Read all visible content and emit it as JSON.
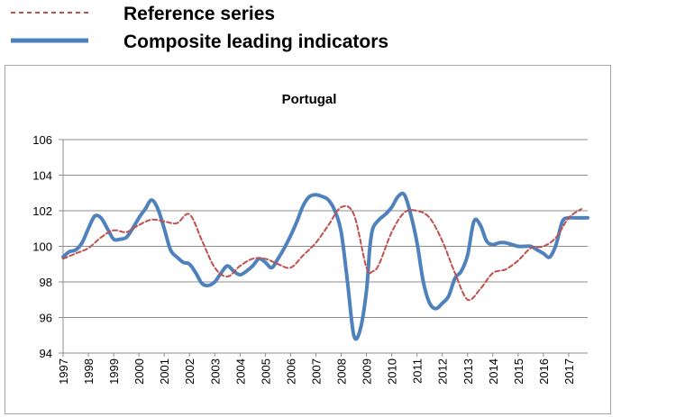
{
  "chart_data": {
    "type": "line",
    "title": "Portugal",
    "xlabel": "",
    "ylabel": "",
    "ylim": [
      94,
      106
    ],
    "yticks": [
      94,
      96,
      98,
      100,
      102,
      104,
      106
    ],
    "xlim": [
      1997,
      2017.75
    ],
    "xticks": [
      "1997",
      "1998",
      "1999",
      "2000",
      "2001",
      "2002",
      "2003",
      "2004",
      "2005",
      "2006",
      "2007",
      "2008",
      "2009",
      "2010",
      "2011",
      "2012",
      "2013",
      "2014",
      "2015",
      "2016",
      "2017"
    ],
    "grid": "horizontal",
    "legend_position": "top-left, outside plot",
    "series": [
      {
        "name": "Reference series",
        "style": "dashed",
        "color": "#c0504d",
        "x": [
          1997,
          1997.5,
          1998,
          1998.5,
          1999,
          1999.5,
          2000,
          2000.5,
          2001,
          2001.5,
          2002,
          2002.5,
          2003,
          2003.5,
          2004,
          2004.5,
          2005,
          2005.5,
          2006,
          2006.5,
          2007,
          2007.5,
          2008,
          2008.5,
          2009,
          2009.25,
          2009.5,
          2010,
          2010.5,
          2011,
          2011.5,
          2012,
          2012.5,
          2013,
          2013.5,
          2014,
          2014.5,
          2015,
          2015.5,
          2016,
          2016.5,
          2017,
          2017.5
        ],
        "values": [
          99.3,
          99.6,
          99.9,
          100.5,
          100.9,
          100.8,
          101.2,
          101.5,
          101.4,
          101.3,
          101.8,
          100.3,
          98.8,
          98.3,
          98.9,
          99.3,
          99.3,
          99.0,
          98.8,
          99.5,
          100.2,
          101.2,
          102.2,
          101.8,
          98.8,
          98.6,
          99.0,
          100.8,
          101.9,
          102.0,
          101.6,
          100.3,
          98.5,
          97.0,
          97.6,
          98.5,
          98.7,
          99.2,
          99.9,
          100.0,
          100.5,
          101.6,
          102.1
        ]
      },
      {
        "name": "Composite leading indicators",
        "style": "solid",
        "color": "#4f81bd",
        "x": [
          1997,
          1997.25,
          1997.5,
          1997.75,
          1998,
          1998.25,
          1998.5,
          1998.75,
          1999,
          1999.25,
          1999.5,
          1999.75,
          2000,
          2000.25,
          2000.5,
          2000.75,
          2001,
          2001.25,
          2001.5,
          2001.75,
          2002,
          2002.25,
          2002.5,
          2002.75,
          2003,
          2003.25,
          2003.5,
          2003.75,
          2004,
          2004.25,
          2004.5,
          2004.75,
          2005,
          2005.25,
          2005.5,
          2005.75,
          2006,
          2006.25,
          2006.5,
          2006.75,
          2007,
          2007.25,
          2007.5,
          2007.75,
          2008,
          2008.25,
          2008.5,
          2008.75,
          2009,
          2009.125,
          2009.25,
          2009.5,
          2009.75,
          2010,
          2010.25,
          2010.5,
          2010.75,
          2011,
          2011.25,
          2011.5,
          2011.75,
          2012,
          2012.25,
          2012.5,
          2012.75,
          2013,
          2013.25,
          2013.5,
          2013.75,
          2014,
          2014.25,
          2014.5,
          2014.75,
          2015,
          2015.25,
          2015.5,
          2015.75,
          2016,
          2016.25,
          2016.5,
          2016.75,
          2017,
          2017.25,
          2017.5,
          2017.75
        ],
        "values": [
          99.4,
          99.7,
          99.8,
          100.2,
          101.0,
          101.7,
          101.6,
          101.0,
          100.4,
          100.4,
          100.5,
          101.0,
          101.6,
          102.1,
          102.6,
          102.1,
          101.0,
          99.8,
          99.4,
          99.1,
          99.0,
          98.5,
          97.9,
          97.8,
          98.0,
          98.5,
          98.9,
          98.6,
          98.4,
          98.6,
          98.9,
          99.3,
          99.1,
          98.8,
          99.3,
          99.9,
          100.6,
          101.4,
          102.3,
          102.8,
          102.9,
          102.8,
          102.6,
          102.0,
          100.8,
          98.0,
          95.0,
          95.3,
          97.5,
          99.8,
          101.0,
          101.5,
          101.8,
          102.2,
          102.8,
          102.9,
          101.8,
          100.2,
          98.0,
          96.8,
          96.5,
          96.8,
          97.2,
          98.2,
          98.6,
          99.5,
          101.4,
          101.2,
          100.3,
          100.1,
          100.2,
          100.2,
          100.1,
          100.0,
          100.0,
          100.0,
          99.8,
          99.6,
          99.4,
          100.1,
          101.4,
          101.6,
          101.6,
          101.6,
          101.6
        ]
      }
    ]
  }
}
